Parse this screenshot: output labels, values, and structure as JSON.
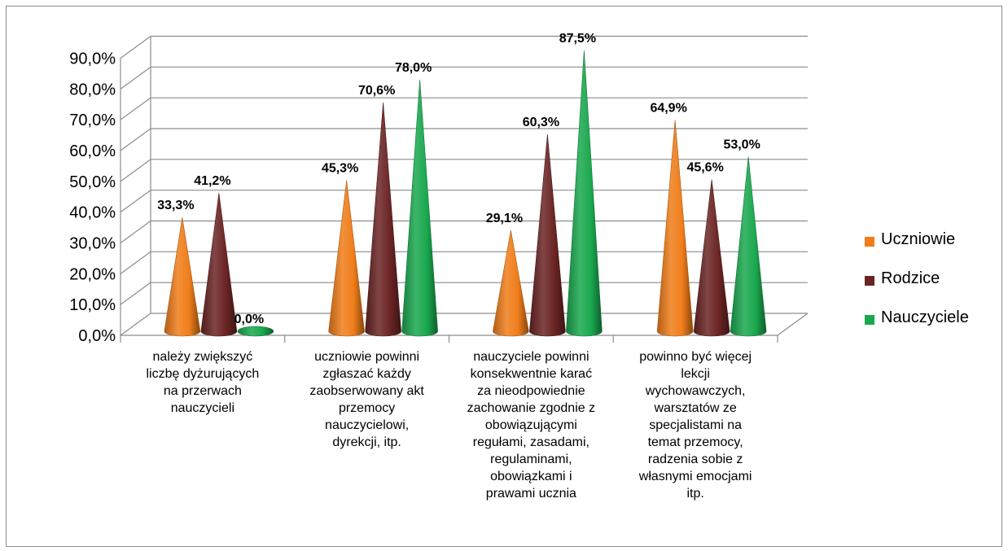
{
  "chart_data": {
    "type": "bar",
    "style": "3d-cone",
    "categories": [
      [
        "należy zwiększyć",
        "liczbę dyżurujących",
        "na przerwach",
        "nauczycieli"
      ],
      [
        "uczniowie powinni",
        "zgłaszać każdy",
        "zaobserwowany akt",
        "przemocy",
        "nauczycielowi,",
        "dyrekcji, itp."
      ],
      [
        "nauczyciele powinni",
        "konsekwentnie karać",
        "za nieodpowiednie",
        "zachowanie zgodnie z",
        "obowiązującymi",
        "regułami, zasadami,",
        "regulaminami,",
        "obowiązkami i",
        "prawami ucznia"
      ],
      [
        "powinno być więcej",
        "lekcji",
        "wychowawczych,",
        "warsztatów ze",
        "specjalistami na",
        "temat przemocy,",
        "radzenia sobie z",
        "własnymi emocjami",
        "itp."
      ]
    ],
    "series": [
      {
        "name": "Uczniowie",
        "color": "#f07d1a",
        "values": [
          33.3,
          45.3,
          29.1,
          64.9
        ],
        "labels": [
          "33,3%",
          "45,3%",
          "29,1%",
          "64,9%"
        ]
      },
      {
        "name": "Rodzice",
        "color": "#6b2424",
        "values": [
          41.2,
          70.6,
          60.3,
          45.6
        ],
        "labels": [
          "41,2%",
          "70,6%",
          "60,3%",
          "45,6%"
        ]
      },
      {
        "name": "Nauczyciele",
        "color": "#1aa84e",
        "values": [
          0.0,
          78.0,
          87.5,
          53.0
        ],
        "labels": [
          "0,0%",
          "78,0%",
          "87,5%",
          "53,0%"
        ]
      }
    ],
    "ylim": [
      0,
      90
    ],
    "yticks": [
      "0,0%",
      "10,0%",
      "20,0%",
      "30,0%",
      "40,0%",
      "50,0%",
      "60,0%",
      "70,0%",
      "80,0%",
      "90,0%"
    ],
    "grid": true,
    "legend_position": "right"
  }
}
